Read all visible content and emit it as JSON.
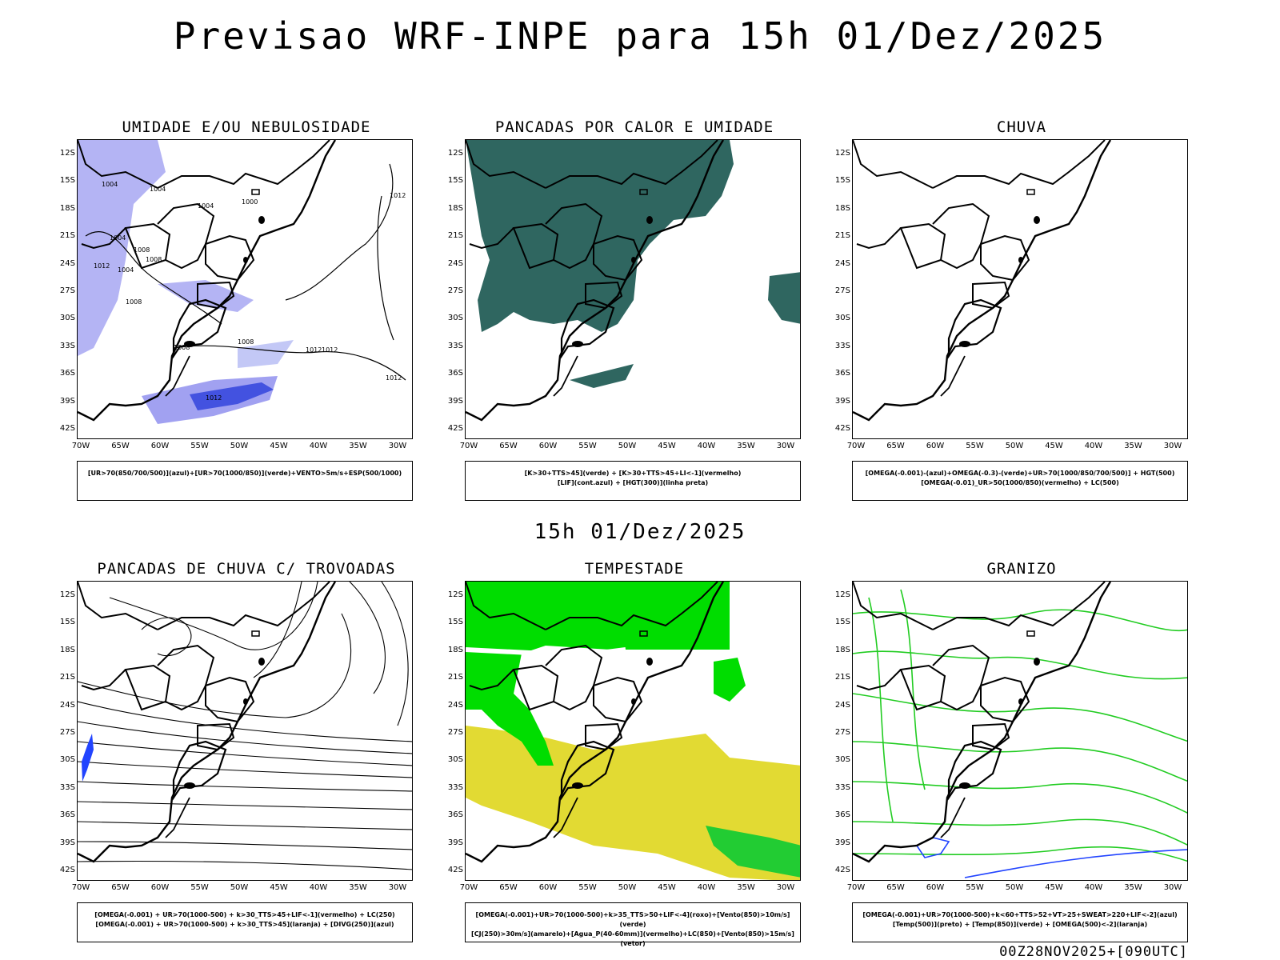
{
  "header": {
    "title": "Previsao WRF-INPE  para 15h 01/Dez/2025"
  },
  "mid_label": "15h 01/Dez/2025",
  "footer": "00Z28NOV2025+[090UTC]",
  "axes": {
    "y_labels": [
      "12S",
      "15S",
      "18S",
      "21S",
      "24S",
      "27S",
      "30S",
      "33S",
      "36S",
      "39S",
      "42S"
    ],
    "x_labels": [
      "70W",
      "65W",
      "60W",
      "55W",
      "50W",
      "45W",
      "40W",
      "35W",
      "30W"
    ]
  },
  "panels": [
    {
      "title": "UMIDADE E/OU NEBULOSIDADE",
      "legend": [
        "[UR>70(850/700/500)](azul)+[UR>70(1000/850)](verde)+VENTO>5m/s+ESP(500/1000)"
      ]
    },
    {
      "title": "PANCADAS POR CALOR E UMIDADE",
      "legend": [
        "[K>30+TTS>45](verde) + [K>30+TTS>45+LI<-1](vermelho)",
        "[LIF](cont.azul) + [HGT(300)](linha preta)"
      ]
    },
    {
      "title": "CHUVA",
      "legend": [
        "[OMEGA(-0.001)-(azul)+OMEGA(-0.3)-(verde)+UR>70(1000/850/700/500)] + HGT(500)",
        "[OMEGA(-0.01)_UR>50(1000/850)(vermelho) + LC(500)"
      ]
    },
    {
      "title": "PANCADAS DE CHUVA C/ TROVOADAS",
      "legend": [
        "[OMEGA(-0.001) + UR>70(1000-500) + k>30_TTS>45+LIF<-1](vermelho) + LC(250)",
        "[OMEGA(-0.001) + UR>70(1000-500) + k>30_TTS>45](laranja) + [DIVG(250)](azul)"
      ]
    },
    {
      "title": "TEMPESTADE",
      "legend": [
        "[OMEGA(-0.001)+UR>70(1000-500)+k>35_TTS>50+LIF<-4](roxo)+[Vento(850)>10m/s](verde)",
        "[CJ(250)>30m/s](amarelo)+[Agua_P(40-60mm)](vermelho)+LC(850)+[Vento(850)>15m/s](vetor)"
      ]
    },
    {
      "title": "GRANIZO",
      "legend": [
        "[OMEGA(-0.001)+UR>70(1000-500)+k<60+TTS>52+VT>25+SWEAT>220+LIF<-2](azul)",
        "[Temp(500)](preto) + [Temp(850)](verde) + [OMEGA(500)<-2](laranja)"
      ]
    }
  ],
  "isobars": [
    "1004",
    "1004",
    "1000",
    "1004",
    "1012",
    "1008",
    "1004",
    "1008",
    "1012",
    "1008",
    "1012",
    "1012",
    "1008",
    "1004",
    "1012",
    "1012",
    "1008"
  ],
  "colors": {
    "humidity": "#8888ee",
    "humidity_dark": "#3344dd",
    "teal": "#2b5f5a",
    "green": "#00dd00",
    "yellow": "#e0d830",
    "line_green": "#22cc22",
    "blue": "#2244ff"
  }
}
